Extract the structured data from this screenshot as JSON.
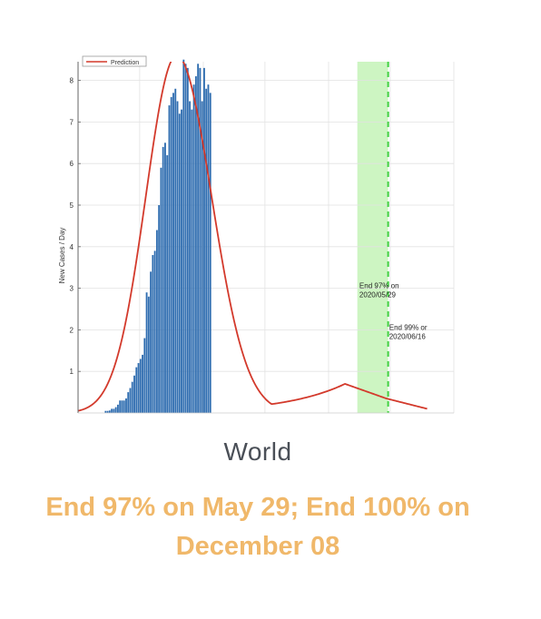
{
  "chart_data": {
    "type": "bar",
    "ylabel": "New Cases / Day",
    "ylim": [
      0,
      8.45
    ],
    "xlim": [
      0,
      183
    ],
    "y_ticks": [
      1,
      2,
      3,
      4,
      5,
      6,
      7,
      8
    ],
    "grid": true,
    "legend": {
      "placement": "top-left",
      "entries": [
        "Prediction"
      ]
    },
    "bar_x_start": 13,
    "bars": [
      0.05,
      0.05,
      0.06,
      0.1,
      0.1,
      0.14,
      0.2,
      0.3,
      0.3,
      0.3,
      0.35,
      0.5,
      0.6,
      0.75,
      0.9,
      1.1,
      1.2,
      1.3,
      1.4,
      1.8,
      2.9,
      2.8,
      3.4,
      3.8,
      3.9,
      4.4,
      5.0,
      5.9,
      6.4,
      6.5,
      6.2,
      7.4,
      7.6,
      7.7,
      7.8,
      7.5,
      7.2,
      7.3,
      8.5,
      8.4,
      8.3,
      7.5,
      7.3,
      7.9,
      8.1,
      8.4,
      8.3,
      7.5,
      8.3,
      7.8,
      7.9,
      7.7
    ],
    "prediction": {
      "name": "Prediction",
      "peak_x": 48,
      "peak_y": 8.6,
      "sigma_left": 15,
      "sigma_right": 17,
      "tail": [
        [
          130,
          0.7
        ],
        [
          150,
          0.35
        ],
        [
          170,
          0.1
        ]
      ]
    },
    "shaded_region": {
      "x_start": 136,
      "x_end": 151
    },
    "threshold_line_x": 151,
    "annotations": [
      {
        "lines": [
          "End 97% on",
          "2020/05/29"
        ],
        "x": 137,
        "y": 3.0
      },
      {
        "lines": [
          "End 99% or",
          "2020/06/16"
        ],
        "x": 151.5,
        "y": 2.0
      }
    ]
  },
  "caption": {
    "region": "World",
    "summary": "End 97% on May 29; End 100% on December 08"
  },
  "colors": {
    "bar": "#2f6db0",
    "prediction": "#d33a2c",
    "shade": "#cdf5c2",
    "threshold": "#3fd13f",
    "grid": "#e2e2e2",
    "axis": "#666666",
    "summary": "#f0b86a",
    "region": "#4a4f57"
  }
}
